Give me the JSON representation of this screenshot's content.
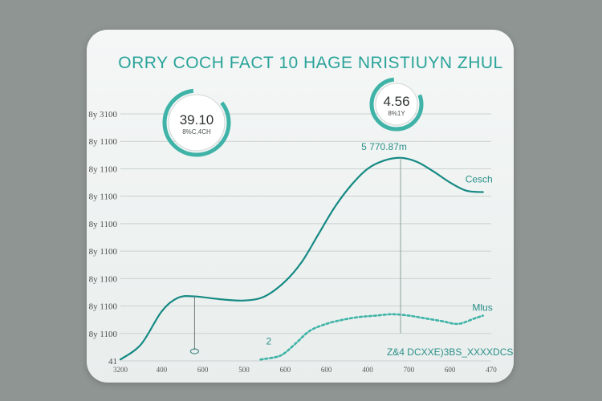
{
  "chart_data": {
    "type": "line",
    "title": "ORRY COCH FACT 10 HAGE NRISTIUYN ZHUL",
    "y_ticks": [
      "8y 3100",
      "8y 1100",
      "8y 1100",
      "8y 1100",
      "8y 1100",
      "8y 1100",
      "8y 1100",
      "8y 1100",
      "8y 1100",
      "41"
    ],
    "x_ticks": [
      "3200",
      "400",
      "600",
      "500",
      "600",
      "600",
      "400",
      "700",
      "600",
      "470"
    ],
    "series": [
      {
        "name": "Cesch",
        "color": "#168a84",
        "style": "solid",
        "x": [
          0,
          0.5,
          1,
          1.4,
          1.8,
          2.4,
          3,
          3.5,
          4,
          4.4,
          4.8,
          5.2,
          5.6,
          6.0,
          6.4,
          6.8,
          7.2,
          7.6,
          8.0,
          8.4,
          8.8
        ],
        "y": [
          0.05,
          0.6,
          1.8,
          2.3,
          2.35,
          2.25,
          2.2,
          2.35,
          2.9,
          3.6,
          4.6,
          5.6,
          6.4,
          7.0,
          7.3,
          7.4,
          7.25,
          6.9,
          6.5,
          6.2,
          6.15
        ]
      },
      {
        "name": "Mlus",
        "color": "#3fb3a7",
        "style": "dashed",
        "x": [
          3.4,
          3.8,
          4.0,
          4.3,
          4.6,
          5.0,
          5.4,
          5.8,
          6.2,
          6.6,
          7.0,
          7.4,
          7.8,
          8.2,
          8.6,
          8.8
        ],
        "y": [
          0.05,
          0.15,
          0.3,
          0.7,
          1.1,
          1.35,
          1.5,
          1.6,
          1.65,
          1.7,
          1.65,
          1.55,
          1.45,
          1.35,
          1.55,
          1.65
        ]
      }
    ],
    "xlim": [
      0,
      9
    ],
    "ylim": [
      0,
      9
    ],
    "grid": true,
    "badges": [
      {
        "value": "39.10",
        "label": "8%C,4CH"
      },
      {
        "value": "4.56",
        "label": "8%1Y"
      }
    ],
    "annotations": [
      {
        "text": "5 770.87m",
        "x": 6.4,
        "y": 7.4
      },
      {
        "text": "2",
        "x": 3.6,
        "y": 0.6
      },
      {
        "text": "Z&4 DCXXE)3BS_XXXXDCS",
        "x": 8.0,
        "y": 0.2
      }
    ]
  }
}
